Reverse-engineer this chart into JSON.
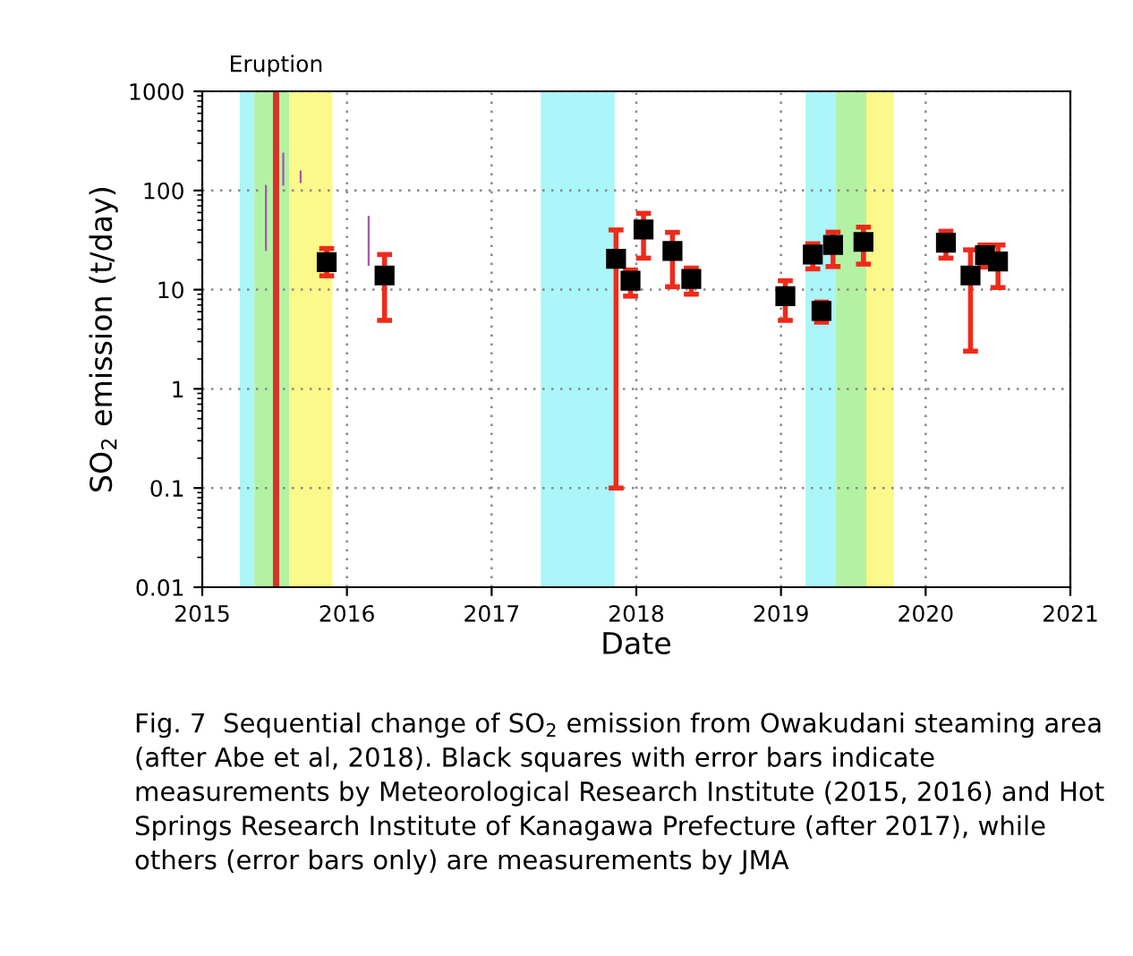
{
  "chart_data": {
    "type": "scatter",
    "xlabel": "Date",
    "ylabel": "SO$_{2}$ emission (t/day)",
    "log": "y",
    "grid": true,
    "xlim": [
      2015,
      2021
    ],
    "xticks": [
      2015,
      2016,
      2017,
      2018,
      2019,
      2020,
      2021
    ],
    "ylim": [
      0.01,
      1000
    ],
    "yticks": [
      0.01,
      0.1,
      1,
      10,
      100,
      1000
    ],
    "bands": [
      {
        "axis": "x",
        "from": 2015.26,
        "to": 2015.36,
        "color": "#aaf6f8"
      },
      {
        "axis": "x",
        "from": 2015.36,
        "to": 2015.6,
        "color": "#b3f2a3"
      },
      {
        "axis": "x",
        "from": 2015.6,
        "to": 2015.9,
        "color": "#fbf98a"
      },
      {
        "axis": "x",
        "from": 2017.34,
        "to": 2017.85,
        "color": "#aaf6f8"
      },
      {
        "axis": "x",
        "from": 2019.17,
        "to": 2019.38,
        "color": "#aaf6f8"
      },
      {
        "axis": "x",
        "from": 2019.38,
        "to": 2019.59,
        "color": "#b3f2a3"
      },
      {
        "axis": "x",
        "from": 2019.59,
        "to": 2019.78,
        "color": "#fbf98a"
      }
    ],
    "ref_lines": [
      {
        "axis": "x",
        "value": 2015.51,
        "label": "Eruption",
        "color": "#d9302a"
      }
    ],
    "series": [
      {
        "type": "bar",
        "color": "#a45ab0",
        "x": [
          2015.44,
          2015.56,
          2015.68,
          2016.15
        ],
        "base": [
          24.6,
          112,
          119,
          17.4
        ],
        "values": [
          89.4,
          129,
          40,
          38.1
        ]
      },
      {
        "color": "#000000",
        "marker": "square",
        "x": [
          2015.86,
          2016.26,
          2017.86,
          2017.96,
          2018.05,
          2018.25,
          2018.38,
          2019.03,
          2019.22,
          2019.28,
          2019.36,
          2019.57,
          2020.14,
          2020.31,
          2020.41,
          2020.5
        ],
        "values": [
          18.9,
          13.9,
          20.5,
          12.3,
          40.5,
          24.6,
          12.8,
          8.6,
          22.6,
          6.1,
          28.2,
          30.3,
          29.8,
          13.9,
          22.3,
          19.2
        ],
        "errors": [
          [
            13.8,
            26
          ],
          [
            4.9,
            22.6
          ],
          [
            0.1,
            40
          ],
          [
            8.6,
            15.8
          ],
          [
            20.8,
            58.8
          ],
          [
            10.7,
            37.8
          ],
          [
            9,
            16.5
          ],
          [
            4.9,
            12.3
          ],
          [
            16.2,
            29
          ],
          [
            4.7,
            7.5
          ],
          [
            17.1,
            38
          ],
          [
            18.1,
            42.7
          ],
          [
            20.8,
            38.8
          ],
          [
            2.4,
            25.2
          ],
          [
            16.9,
            28.2
          ],
          [
            10.5,
            28.2
          ]
        ]
      }
    ],
    "annotations": [
      "Fig. 7  Sequential change of SO$_{2}$ emission from Owakudani steaming area (after Abe et al, 2018). Black squares with error bars indicate measurements by Meteorological Research Institute (2015, 2016) and Hot Springs Research Institute of Kanagawa Prefecture (after 2017), while others (error bars only) are measurements by JMA"
    ]
  }
}
